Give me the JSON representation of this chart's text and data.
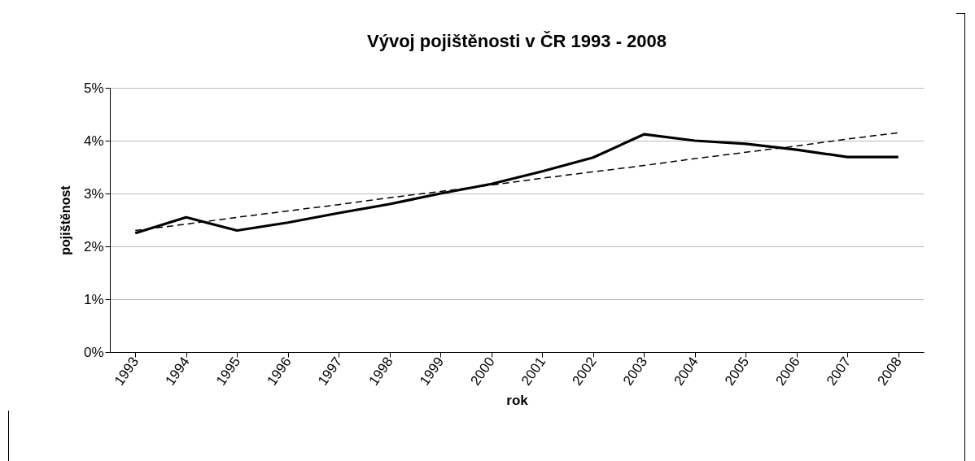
{
  "chart_data": {
    "type": "line",
    "title": "Vývoj pojištěnosti v ČR 1993 - 2008",
    "xlabel": "rok",
    "ylabel": "pojištěnost",
    "categories": [
      "1993",
      "1994",
      "1995",
      "1996",
      "1997",
      "1998",
      "1999",
      "2000",
      "2001",
      "2002",
      "2003",
      "2004",
      "2005",
      "2006",
      "2007",
      "2008"
    ],
    "series": [
      {
        "color": "#000000",
        "line_style": "solid",
        "values": [
          2.25,
          2.55,
          2.3,
          2.45,
          2.63,
          2.8,
          3.0,
          3.18,
          3.42,
          3.68,
          4.12,
          4.0,
          3.94,
          3.83,
          3.69,
          3.69
        ]
      },
      {
        "type": "line",
        "color": "#000000",
        "line_style": "dashed",
        "values": [
          2.3,
          2.42,
          2.55,
          2.67,
          2.79,
          2.92,
          3.04,
          3.16,
          3.29,
          3.41,
          3.53,
          3.66,
          3.78,
          3.9,
          4.03,
          4.15
        ]
      }
    ],
    "ylim": [
      0,
      5
    ],
    "yticks": [
      {
        "value": 0,
        "label": "0%"
      },
      {
        "value": 1,
        "label": "1%"
      },
      {
        "value": 2,
        "label": "2%"
      },
      {
        "value": 3,
        "label": "3%"
      },
      {
        "value": 4,
        "label": "4%"
      },
      {
        "value": 5,
        "label": "5%"
      }
    ],
    "grid": "y"
  }
}
